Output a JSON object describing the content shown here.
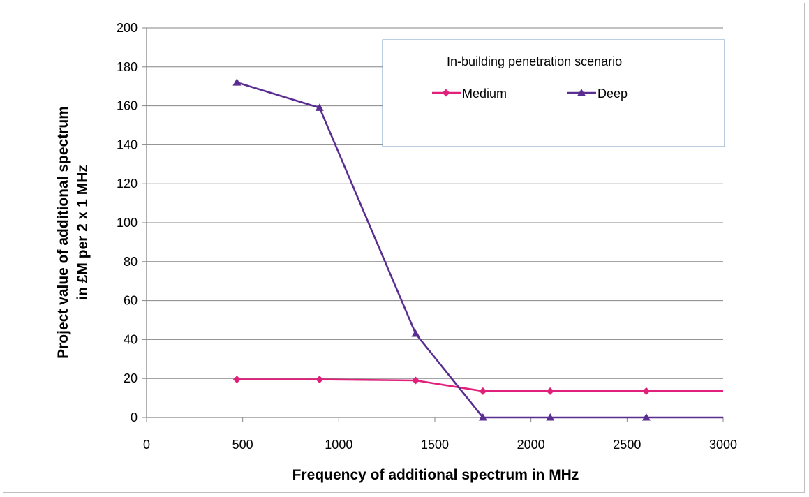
{
  "chart_data": {
    "type": "line",
    "xlabel": "Frequency of additional spectrum in MHz",
    "ylabel_lines": [
      "Project value of additional spectrum",
      "in £M per 2 x 1 MHz"
    ],
    "xlim": [
      0,
      3000
    ],
    "ylim": [
      0,
      200
    ],
    "xticks": [
      0,
      500,
      1000,
      1500,
      2000,
      2500,
      3000
    ],
    "yticks": [
      0,
      20,
      40,
      60,
      80,
      100,
      120,
      140,
      160,
      180,
      200
    ],
    "grid": "horizontal",
    "legend": {
      "title": "In-building penetration  scenario",
      "placement": "top-right"
    },
    "series": [
      {
        "name": "Medium",
        "color": "#e0207a",
        "marker": "diamond",
        "x": [
          470,
          900,
          1400,
          1750,
          2100,
          2600,
          3000
        ],
        "y": [
          19.5,
          19.5,
          19,
          13.5,
          13.5,
          13.5,
          13.5
        ],
        "markers_at": [
          0,
          1,
          2,
          3,
          4,
          5
        ]
      },
      {
        "name": "Deep",
        "color": "#5a2d91",
        "marker": "triangle",
        "x": [
          470,
          900,
          1400,
          1750,
          2100,
          2600,
          3000
        ],
        "y": [
          172,
          159,
          43,
          0,
          0,
          0,
          0
        ],
        "markers_at": [
          0,
          1,
          2,
          3,
          4,
          5
        ]
      }
    ]
  }
}
